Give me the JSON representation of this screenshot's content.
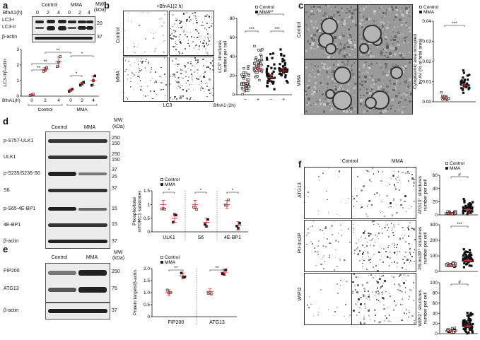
{
  "panels": {
    "a": "a",
    "b": "b",
    "c": "c",
    "d": "d",
    "e": "e",
    "f": "f"
  },
  "a": {
    "blot_groups": [
      "Control",
      "MMA"
    ],
    "treatment_label": "BfnA1(h)",
    "time_points": [
      "0",
      "2",
      "4",
      "0",
      "2",
      "4"
    ],
    "mw_label": "MW",
    "mw_unit": "(kDa)",
    "mw_values": [
      "20",
      "37"
    ],
    "bands": [
      "LC3-I",
      "LC3-II",
      "β-actin"
    ],
    "chart_data": {
      "type": "scatter",
      "ylabel": "LC3-II/β-actin",
      "ylim": [
        0,
        3
      ],
      "yticks": [
        "0",
        "1",
        "2",
        "3"
      ],
      "x_ticks": [
        "0",
        "2",
        "4",
        "0",
        "2",
        "4"
      ],
      "x_axis_label": "BfnA1(h)",
      "groups": [
        "Control",
        "MMA"
      ],
      "series": [
        {
          "group": "Control",
          "x": "0",
          "values": [
            0.05,
            0.08,
            0.12
          ],
          "mean": 0.08
        },
        {
          "group": "Control",
          "x": "2",
          "values": [
            1.6,
            1.7,
            1.85
          ],
          "mean": 1.72
        },
        {
          "group": "Control",
          "x": "4",
          "values": [
            1.9,
            2.2,
            2.55
          ],
          "mean": 2.2
        },
        {
          "group": "MMA",
          "x": "0",
          "values": [
            0.3,
            0.38,
            0.45
          ],
          "mean": 0.38
        },
        {
          "group": "MMA",
          "x": "2",
          "values": [
            0.7,
            0.8,
            0.9
          ],
          "mean": 0.8
        },
        {
          "group": "MMA",
          "x": "4",
          "values": [
            0.7,
            1.0,
            1.3
          ],
          "mean": 1.0
        }
      ],
      "significance": [
        "**",
        "**",
        "**",
        "*",
        "*"
      ]
    }
  },
  "b": {
    "title": "+BfnA1(2 h)",
    "row_labels": [
      "Control",
      "MMA"
    ],
    "stain_label": "LC3",
    "legend": [
      "Control",
      "MMA"
    ],
    "chart_data": {
      "type": "scatter",
      "ylabel": "LC3⁺ structures number per cell",
      "ylim": [
        0,
        80
      ],
      "yticks": [
        "0",
        "20",
        "40",
        "60",
        "80"
      ],
      "x_label": "BfnA1 (2h)",
      "x_ticks": [
        "−",
        "+",
        "−",
        "+"
      ],
      "series": [
        {
          "name": "Control",
          "bfna1": "−",
          "mean": 10
        },
        {
          "name": "Control",
          "bfna1": "+",
          "mean": 28
        },
        {
          "name": "MMA",
          "bfna1": "−",
          "mean": 18
        },
        {
          "name": "MMA",
          "bfna1": "+",
          "mean": 25
        }
      ],
      "significance": [
        "***",
        "***",
        "***"
      ]
    }
  },
  "c": {
    "row_labels": [
      "Control",
      "MMA"
    ],
    "legend": [
      "Control",
      "MMA"
    ],
    "chart_data": {
      "type": "scatter",
      "ylabel": "Cytoplasmic area occupied by AV (% of total area)",
      "ylim": [
        0,
        0.04
      ],
      "yticks": [
        "0.00",
        "0.01",
        "0.02",
        "0.03",
        "0.04"
      ],
      "series": [
        {
          "name": "Control",
          "mean": 0.002
        },
        {
          "name": "MMA",
          "mean": 0.008
        }
      ],
      "significance": [
        "***"
      ]
    }
  },
  "d": {
    "groups": [
      "Control",
      "MMA"
    ],
    "mw_label": "MW",
    "mw_unit": "(kDa)",
    "bands": [
      "p-S757-ULK1",
      "ULK1",
      "p-S235/S236-S6",
      "S6",
      "p-S65-4E-BP1",
      "4E-BP1",
      "β-actin"
    ],
    "mw_values": [
      "250",
      "150",
      "250",
      "150",
      "37",
      "25",
      "37",
      "15",
      "15",
      "37"
    ],
    "legend": [
      "Control",
      "MMA"
    ],
    "chart_data": {
      "type": "scatter",
      "ylabel": "Phospho/total mTORC1 substrates",
      "ylim": [
        0,
        1.5
      ],
      "yticks": [
        "0",
        "0.5",
        "1",
        "1.5"
      ],
      "categories": [
        "ULK1",
        "S6",
        "4E-BP1"
      ],
      "series": [
        {
          "name": "Control",
          "values": [
            1.0,
            1.0,
            1.0
          ]
        },
        {
          "name": "MMA",
          "values": [
            0.5,
            0.35,
            0.22
          ]
        }
      ],
      "significance": [
        "*",
        "*",
        "*"
      ]
    }
  },
  "e": {
    "groups": [
      "Control",
      "MMA"
    ],
    "mw_label": "MW",
    "mw_unit": "(kDa)",
    "bands": [
      "FIP200",
      "ATG13",
      "β-actin"
    ],
    "mw_values": [
      "250",
      "75",
      "37"
    ],
    "legend": [
      "Control",
      "MMA"
    ],
    "chart_data": {
      "type": "scatter",
      "ylabel": "Protein targets/β-actin",
      "ylim": [
        0,
        2
      ],
      "yticks": [
        "0",
        "0.5",
        "1.0",
        "1.5",
        "2.0"
      ],
      "categories": [
        "FIP200",
        "ATG13"
      ],
      "series": [
        {
          "name": "Control",
          "values": [
            1.0,
            1.05
          ]
        },
        {
          "name": "MMA",
          "values": [
            1.7,
            1.85
          ]
        }
      ],
      "significance": [
        "**",
        "**"
      ]
    }
  },
  "f": {
    "col_labels": [
      "Control",
      "MMA"
    ],
    "row_labels": [
      "ATG13",
      "PtI-Ins3P",
      "WIPI2"
    ],
    "legend": [
      "Control",
      "MMA"
    ],
    "charts": [
      {
        "type": "scatter",
        "ylabel": "ATG13⁺ structures number per cell",
        "ylim": [
          0,
          60
        ],
        "yticks": [
          "0",
          "20",
          "40",
          "60"
        ],
        "significance": "#",
        "series": [
          {
            "name": "Control",
            "mean": 2
          },
          {
            "name": "MMA",
            "mean": 8
          }
        ]
      },
      {
        "type": "scatter",
        "ylabel": "PtI-Ins3P⁺ structures number per cell",
        "ylim": [
          0,
          300
        ],
        "yticks": [
          "0",
          "100",
          "200",
          "300"
        ],
        "significance": "***",
        "series": [
          {
            "name": "Control",
            "mean": 40
          },
          {
            "name": "MMA",
            "mean": 70
          }
        ]
      },
      {
        "type": "scatter",
        "ylabel": "WIPI2⁺ structures number per cell",
        "ylim": [
          0,
          100
        ],
        "yticks": [
          "0",
          "20",
          "40",
          "60",
          "80",
          "100"
        ],
        "significance": "#",
        "series": [
          {
            "name": "Control",
            "mean": 5
          },
          {
            "name": "MMA",
            "mean": 15
          }
        ]
      }
    ]
  }
}
